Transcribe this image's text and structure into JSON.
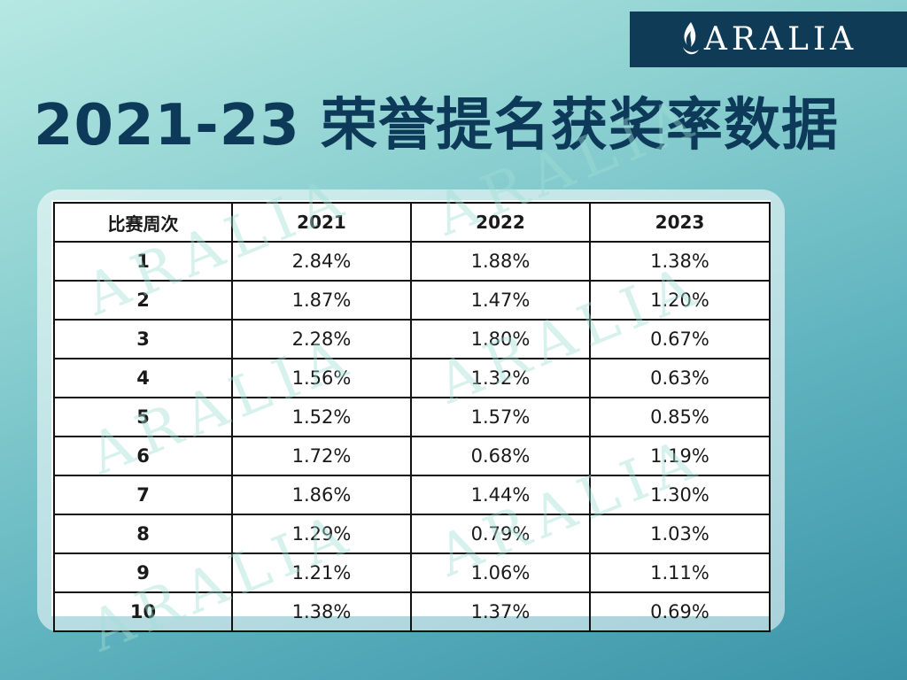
{
  "brand": {
    "name": "ARALIA",
    "box_color": "#0f3b57",
    "icon": "flame-icon"
  },
  "title": "2021-23 荣誉提名获奖率数据",
  "table": {
    "headers": [
      "比赛周次",
      "2021",
      "2022",
      "2023"
    ],
    "rows": [
      [
        "1",
        "2.84%",
        "1.88%",
        "1.38%"
      ],
      [
        "2",
        "1.87%",
        "1.47%",
        "1.20%"
      ],
      [
        "3",
        "2.28%",
        "1.80%",
        "0.67%"
      ],
      [
        "4",
        "1.56%",
        "1.32%",
        "0.63%"
      ],
      [
        "5",
        "1.52%",
        "1.57%",
        "0.85%"
      ],
      [
        "6",
        "1.72%",
        "0.68%",
        "1.19%"
      ],
      [
        "7",
        "1.86%",
        "1.44%",
        "1.30%"
      ],
      [
        "8",
        "1.29%",
        "0.79%",
        "1.03%"
      ],
      [
        "9",
        "1.21%",
        "1.06%",
        "1.11%"
      ],
      [
        "10",
        "1.38%",
        "1.37%",
        "0.69%"
      ]
    ]
  },
  "watermark": {
    "text": "ARALIA"
  }
}
